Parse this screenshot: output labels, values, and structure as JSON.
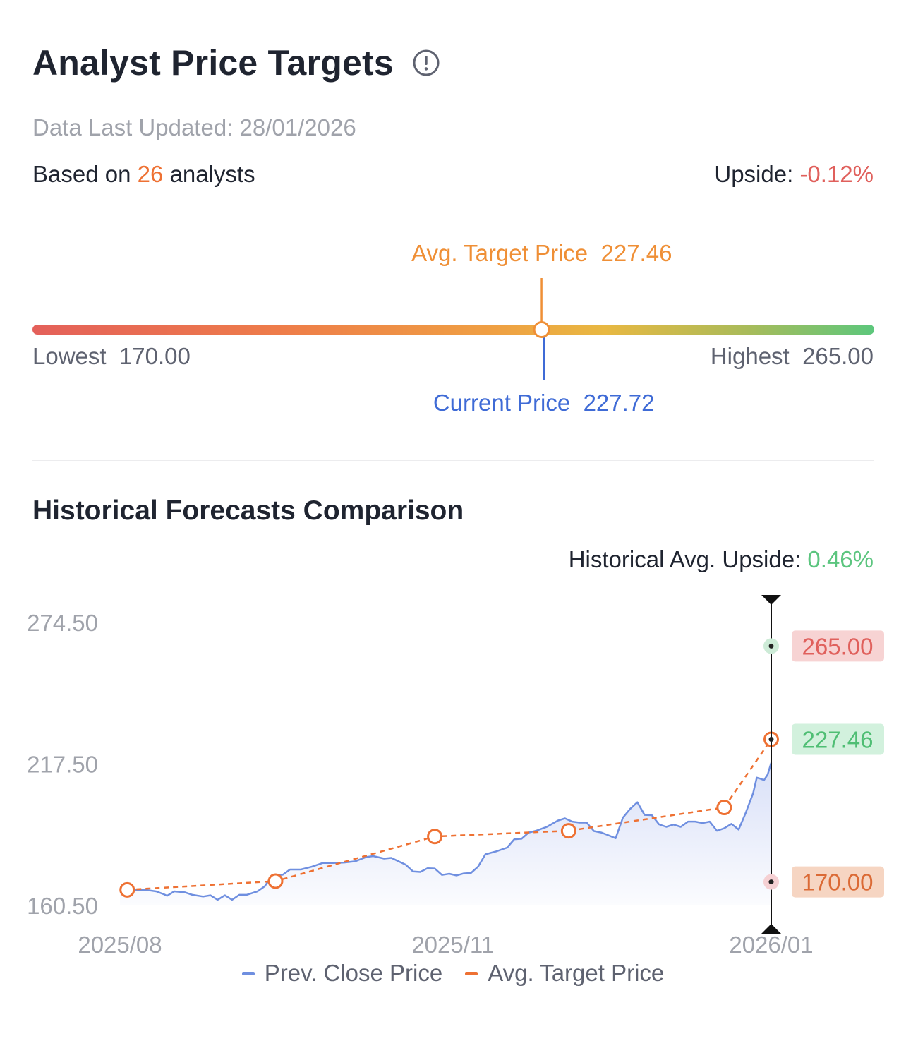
{
  "header": {
    "title": "Analyst Price Targets",
    "updated": "Data Last Updated: 28/01/2026",
    "based_prefix": "Based on ",
    "analyst_count": "26",
    "based_suffix": " analysts",
    "upside_label": "Upside: ",
    "upside_value": "-0.12%"
  },
  "range": {
    "avg_label": "Avg. Target Price",
    "avg_value": "227.46",
    "current_label": "Current Price",
    "current_value": "227.72",
    "lowest_label": "Lowest",
    "lowest_value": "170.00",
    "highest_label": "Highest",
    "highest_value": "265.00",
    "low": 170.0,
    "high": 265.0,
    "avg": 227.46,
    "current": 227.72
  },
  "history": {
    "title": "Historical Forecasts Comparison",
    "upside_label": "Historical Avg. Upside: ",
    "upside_value": "0.46%"
  },
  "colors": {
    "close_line": "#6f8fe0",
    "target_line": "#ee7133",
    "high_badge_bg": "#f7d3d3",
    "high_badge_text": "#e0605c",
    "avg_badge_bg": "#d2f1dd",
    "avg_badge_text": "#4fbe74",
    "low_badge_bg": "#f6d5c2",
    "low_badge_text": "#db6a35"
  },
  "chart_data": {
    "type": "line",
    "ylim": [
      160.5,
      274.5
    ],
    "yticks": [
      "274.50",
      "217.50",
      "160.50"
    ],
    "xticks": [
      "2025/08",
      "2025/11",
      "2026/01"
    ],
    "x_range": [
      "2025-08-01",
      "2026-01-28"
    ],
    "legend": [
      "Prev. Close Price",
      "Avg. Target Price"
    ],
    "series": [
      {
        "name": "Prev. Close Price",
        "points": [
          [
            "2025-08-01",
            166.8
          ],
          [
            "2025-08-04",
            166.9
          ],
          [
            "2025-08-06",
            166.6
          ],
          [
            "2025-08-08",
            166.8
          ],
          [
            "2025-08-11",
            166.2
          ],
          [
            "2025-08-13",
            165.1
          ],
          [
            "2025-08-14",
            164.4
          ],
          [
            "2025-08-16",
            166.2
          ],
          [
            "2025-08-19",
            165.8
          ],
          [
            "2025-08-21",
            164.8
          ],
          [
            "2025-08-24",
            164.1
          ],
          [
            "2025-08-26",
            164.6
          ],
          [
            "2025-08-28",
            162.8
          ],
          [
            "2025-08-30",
            164.6
          ],
          [
            "2025-09-01",
            162.8
          ],
          [
            "2025-09-03",
            164.8
          ],
          [
            "2025-09-05",
            164.8
          ],
          [
            "2025-09-08",
            166.2
          ],
          [
            "2025-09-10",
            168.2
          ],
          [
            "2025-09-12",
            172.5
          ],
          [
            "2025-09-15",
            172.9
          ],
          [
            "2025-09-17",
            175.0
          ],
          [
            "2025-09-20",
            175.0
          ],
          [
            "2025-09-23",
            176.1
          ],
          [
            "2025-09-26",
            177.6
          ],
          [
            "2025-09-29",
            177.6
          ],
          [
            "2025-10-02",
            177.8
          ],
          [
            "2025-10-05",
            178.3
          ],
          [
            "2025-10-08",
            180.0
          ],
          [
            "2025-10-10",
            180.4
          ],
          [
            "2025-10-13",
            179.4
          ],
          [
            "2025-10-15",
            179.7
          ],
          [
            "2025-10-17",
            178.3
          ],
          [
            "2025-10-19",
            176.9
          ],
          [
            "2025-10-21",
            174.2
          ],
          [
            "2025-10-23",
            174.0
          ],
          [
            "2025-10-25",
            175.5
          ],
          [
            "2025-10-27",
            175.4
          ],
          [
            "2025-10-29",
            172.8
          ],
          [
            "2025-10-31",
            173.3
          ],
          [
            "2025-11-02",
            172.6
          ],
          [
            "2025-11-04",
            173.4
          ],
          [
            "2025-11-06",
            173.6
          ],
          [
            "2025-11-08",
            176.2
          ],
          [
            "2025-11-10",
            181.1
          ],
          [
            "2025-11-13",
            182.3
          ],
          [
            "2025-11-16",
            183.8
          ],
          [
            "2025-11-18",
            187.2
          ],
          [
            "2025-11-20",
            187.4
          ],
          [
            "2025-11-22",
            189.9
          ],
          [
            "2025-11-24",
            190.6
          ],
          [
            "2025-11-27",
            192.2
          ],
          [
            "2025-11-30",
            194.7
          ],
          [
            "2025-12-02",
            195.6
          ],
          [
            "2025-12-04",
            194.3
          ],
          [
            "2025-12-06",
            193.9
          ],
          [
            "2025-12-08",
            193.9
          ],
          [
            "2025-12-10",
            190.5
          ],
          [
            "2025-12-12",
            189.9
          ],
          [
            "2025-12-14",
            188.8
          ],
          [
            "2025-12-16",
            187.6
          ],
          [
            "2025-12-18",
            195.9
          ],
          [
            "2025-12-20",
            199.4
          ],
          [
            "2025-12-22",
            202.1
          ],
          [
            "2025-12-24",
            197.0
          ],
          [
            "2025-12-26",
            196.9
          ],
          [
            "2025-12-28",
            193.2
          ],
          [
            "2025-12-30",
            192.2
          ],
          [
            "2026-01-01",
            193.1
          ],
          [
            "2026-01-03",
            192.2
          ],
          [
            "2026-01-05",
            194.3
          ],
          [
            "2026-01-07",
            194.3
          ],
          [
            "2026-01-09",
            193.7
          ],
          [
            "2026-01-11",
            194.3
          ],
          [
            "2026-01-13",
            190.6
          ],
          [
            "2026-01-15",
            191.6
          ],
          [
            "2026-01-17",
            193.4
          ],
          [
            "2026-01-19",
            191.1
          ],
          [
            "2026-01-21",
            198.0
          ],
          [
            "2026-01-23",
            205.8
          ],
          [
            "2026-01-24",
            212.0
          ],
          [
            "2026-01-25",
            211.6
          ],
          [
            "2026-01-26",
            211.0
          ],
          [
            "2026-01-27",
            213.2
          ],
          [
            "2026-01-28",
            218.0
          ]
        ]
      },
      {
        "name": "Avg. Target Price",
        "points": [
          [
            "2025-08-03",
            166.8
          ],
          [
            "2025-09-13",
            170.3
          ],
          [
            "2025-10-27",
            188.3
          ],
          [
            "2025-12-03",
            190.6
          ],
          [
            "2026-01-15",
            200.0
          ],
          [
            "2026-01-28",
            227.46
          ]
        ]
      }
    ],
    "latest": {
      "high": "265.00",
      "avg": "227.46",
      "low": "170.00",
      "high_value": 265.0,
      "avg_value": 227.46,
      "low_value": 170.0
    }
  }
}
